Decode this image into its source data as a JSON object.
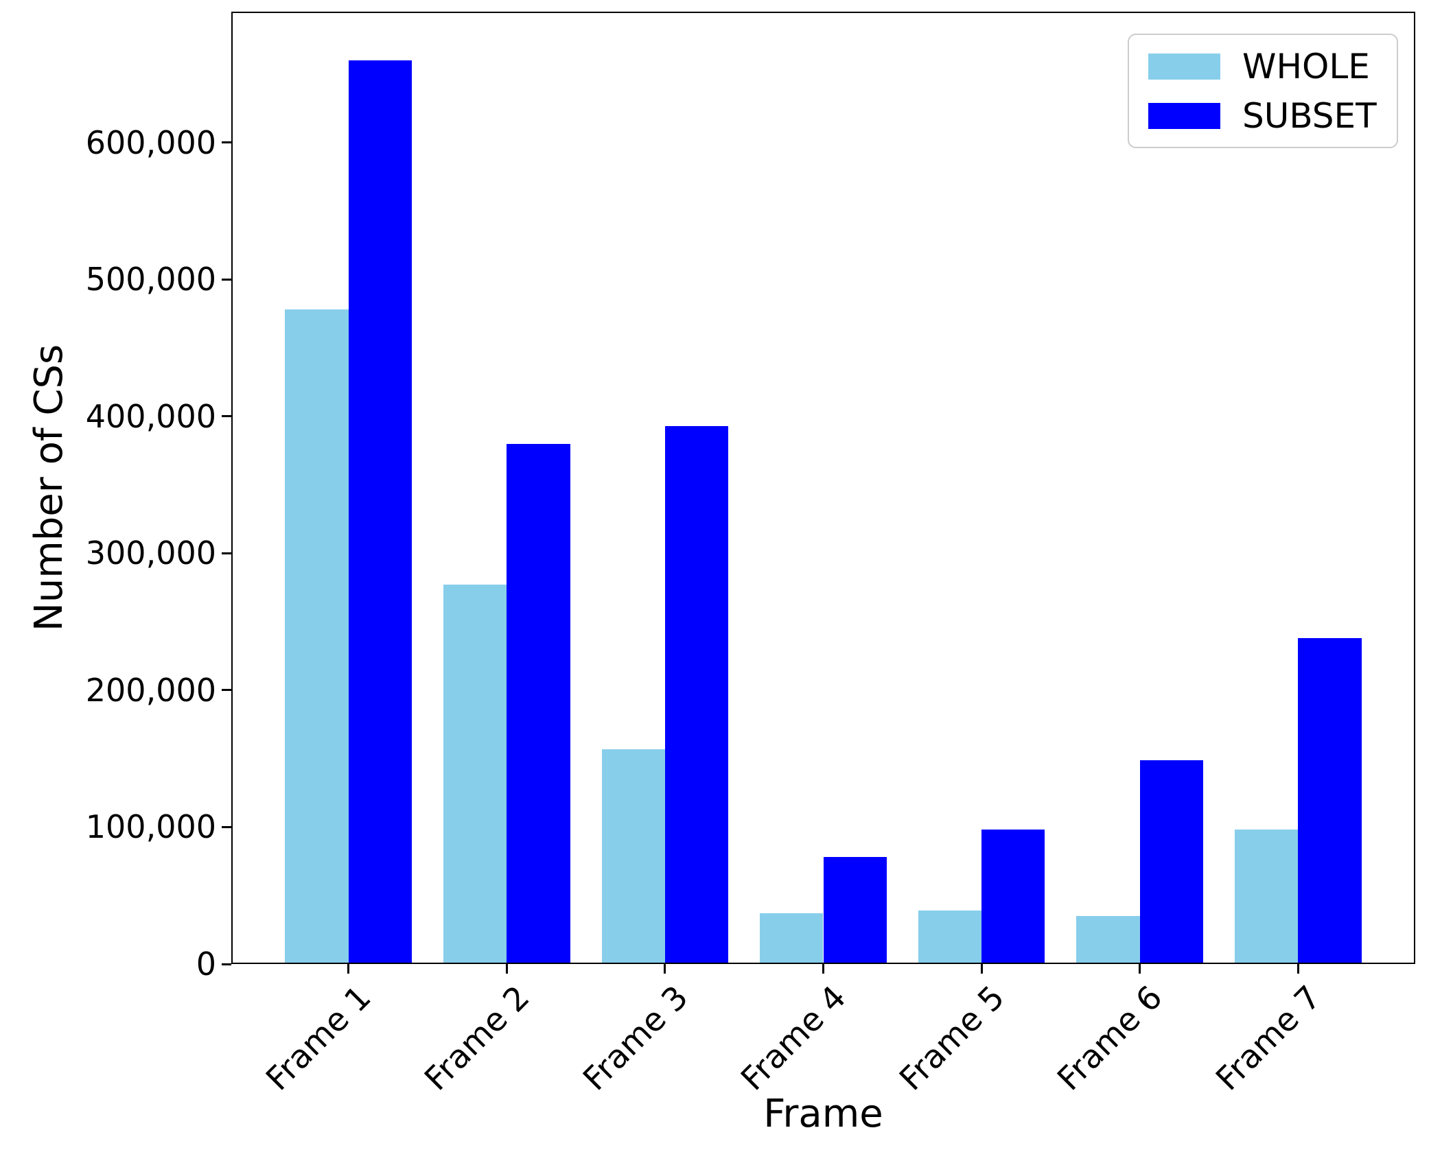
{
  "chart_data": {
    "type": "bar",
    "title": "",
    "xlabel": "Frame",
    "ylabel": "Number of CSs",
    "categories": [
      "Frame 1",
      "Frame 2",
      "Frame 3",
      "Frame 4",
      "Frame 5",
      "Frame 6",
      "Frame 7"
    ],
    "series": [
      {
        "name": "WHOLE",
        "color": "#87CEEB",
        "values": [
          478000,
          277000,
          157000,
          37000,
          39000,
          35000,
          98000
        ]
      },
      {
        "name": "SUBSET",
        "color": "#0000FF",
        "values": [
          660000,
          380000,
          393000,
          78000,
          98000,
          149000,
          238000
        ]
      }
    ],
    "yticks": {
      "values": [
        0,
        100000,
        200000,
        300000,
        400000,
        500000,
        600000
      ],
      "labels": [
        "0",
        "100,000",
        "200,000",
        "300,000",
        "400,000",
        "500,000",
        "600,000"
      ]
    },
    "ylim": [
      0,
      695700
    ],
    "xlim": [
      -0.74,
      6.74
    ],
    "bar_width_units": 0.4,
    "xtick_rotation_deg": 45,
    "grid": false,
    "legend": {
      "position": "upper right",
      "frame_border_color": "#CCCCCC"
    },
    "axis_color": "#000000",
    "background_color": "#FFFFFF"
  }
}
